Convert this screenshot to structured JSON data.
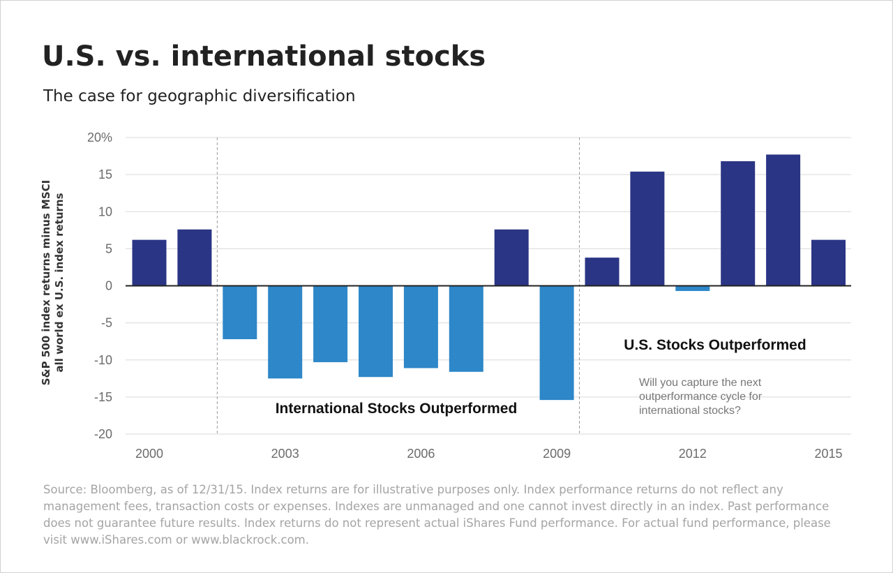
{
  "title": "U.S. vs. international stocks",
  "subtitle": "The case for geographic diversification",
  "chart_data": {
    "type": "bar",
    "title": "U.S. vs. international stocks",
    "subtitle": "The case for geographic diversification",
    "ylabel_lines": [
      "S&P 500 index returns minus MSCI",
      "all world ex U.S. index returns"
    ],
    "categories": [
      "2000",
      "2001",
      "2002",
      "2003",
      "2004",
      "2005",
      "2006",
      "2007",
      "2008",
      "2009",
      "2010",
      "2011",
      "2012",
      "2013",
      "2014",
      "2015"
    ],
    "values": [
      6.2,
      7.6,
      -7.2,
      -12.5,
      -10.3,
      -12.3,
      -11.1,
      -11.6,
      7.6,
      -15.4,
      3.8,
      15.4,
      -0.7,
      16.8,
      17.7,
      6.2
    ],
    "xtick_labels": [
      "2000",
      "2003",
      "2006",
      "2009",
      "2012",
      "2015"
    ],
    "ytick_labels": [
      "20%",
      "15",
      "10",
      "5",
      "0",
      "-5",
      "-10",
      "-15",
      "-20"
    ],
    "yticks": [
      20,
      15,
      10,
      5,
      0,
      -5,
      -10,
      -15,
      -20
    ],
    "ylim": [
      -20,
      20
    ],
    "grid": true,
    "colors": {
      "positive": "#2b3585",
      "negative": "#2d87c8",
      "grid": "#d9d9d9",
      "zero": "#222222",
      "divider": "#9a9a9a"
    },
    "dividers_after": [
      "2001",
      "2009"
    ],
    "annotations": {
      "international": "International Stocks Outperformed",
      "us": "U.S. Stocks Outperformed",
      "question_lines": [
        "Will you capture the next",
        "outperformance cycle for",
        "international stocks?"
      ]
    }
  },
  "source_text": "Source: Bloomberg, as of 12/31/15. Index returns are for illustrative purposes only. Index performance returns do not reflect any management fees, transaction costs or expenses. Indexes are unmanaged and one cannot invest directly in an index. Past performance does not guarantee future results. Index returns do not represent actual iShares Fund performance. For actual fund performance, please visit www.iShares.com or www.blackrock.com."
}
